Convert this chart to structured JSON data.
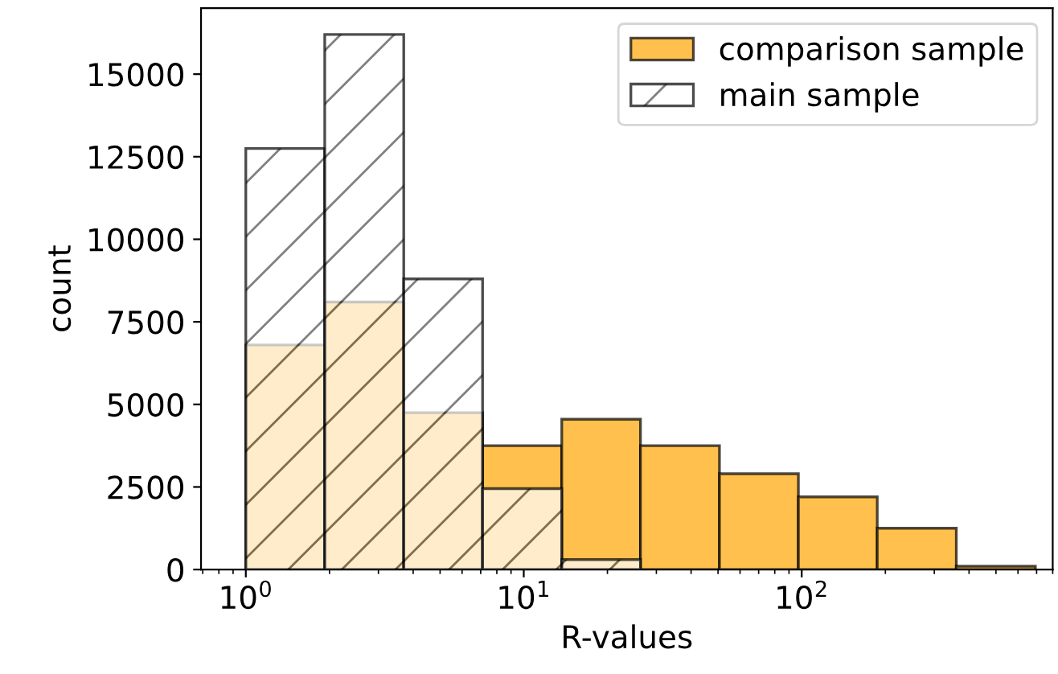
{
  "chart_data": {
    "type": "histogram",
    "xlabel": "R-values",
    "ylabel": "count",
    "bins": [
      1,
      1.923,
      3.7,
      7.11,
      13.7,
      26.3,
      50.6,
      97.3,
      187,
      360,
      693
    ],
    "series": [
      {
        "name": "comparison sample",
        "color": "#ffc04d",
        "values": [
          6800,
          8100,
          4750,
          3750,
          4550,
          3750,
          2900,
          2200,
          1250,
          100
        ]
      },
      {
        "name": "main sample",
        "color": "#000000",
        "values": [
          12750,
          16200,
          8800,
          2450,
          300,
          null,
          null,
          null,
          null,
          null
        ]
      }
    ],
    "log": "x",
    "xlim": [
      0.69,
      800
    ],
    "xticks": [
      {
        "value": 1,
        "label": "10$^{0}$"
      },
      {
        "value": 10,
        "label": "10$^{1}$"
      },
      {
        "value": 100,
        "label": "10$^{2}$"
      }
    ],
    "ylim": [
      0,
      17000
    ],
    "yticks": [
      0,
      2500,
      5000,
      7500,
      10000,
      12500,
      15000
    ],
    "grid": false,
    "legend": "top right"
  }
}
